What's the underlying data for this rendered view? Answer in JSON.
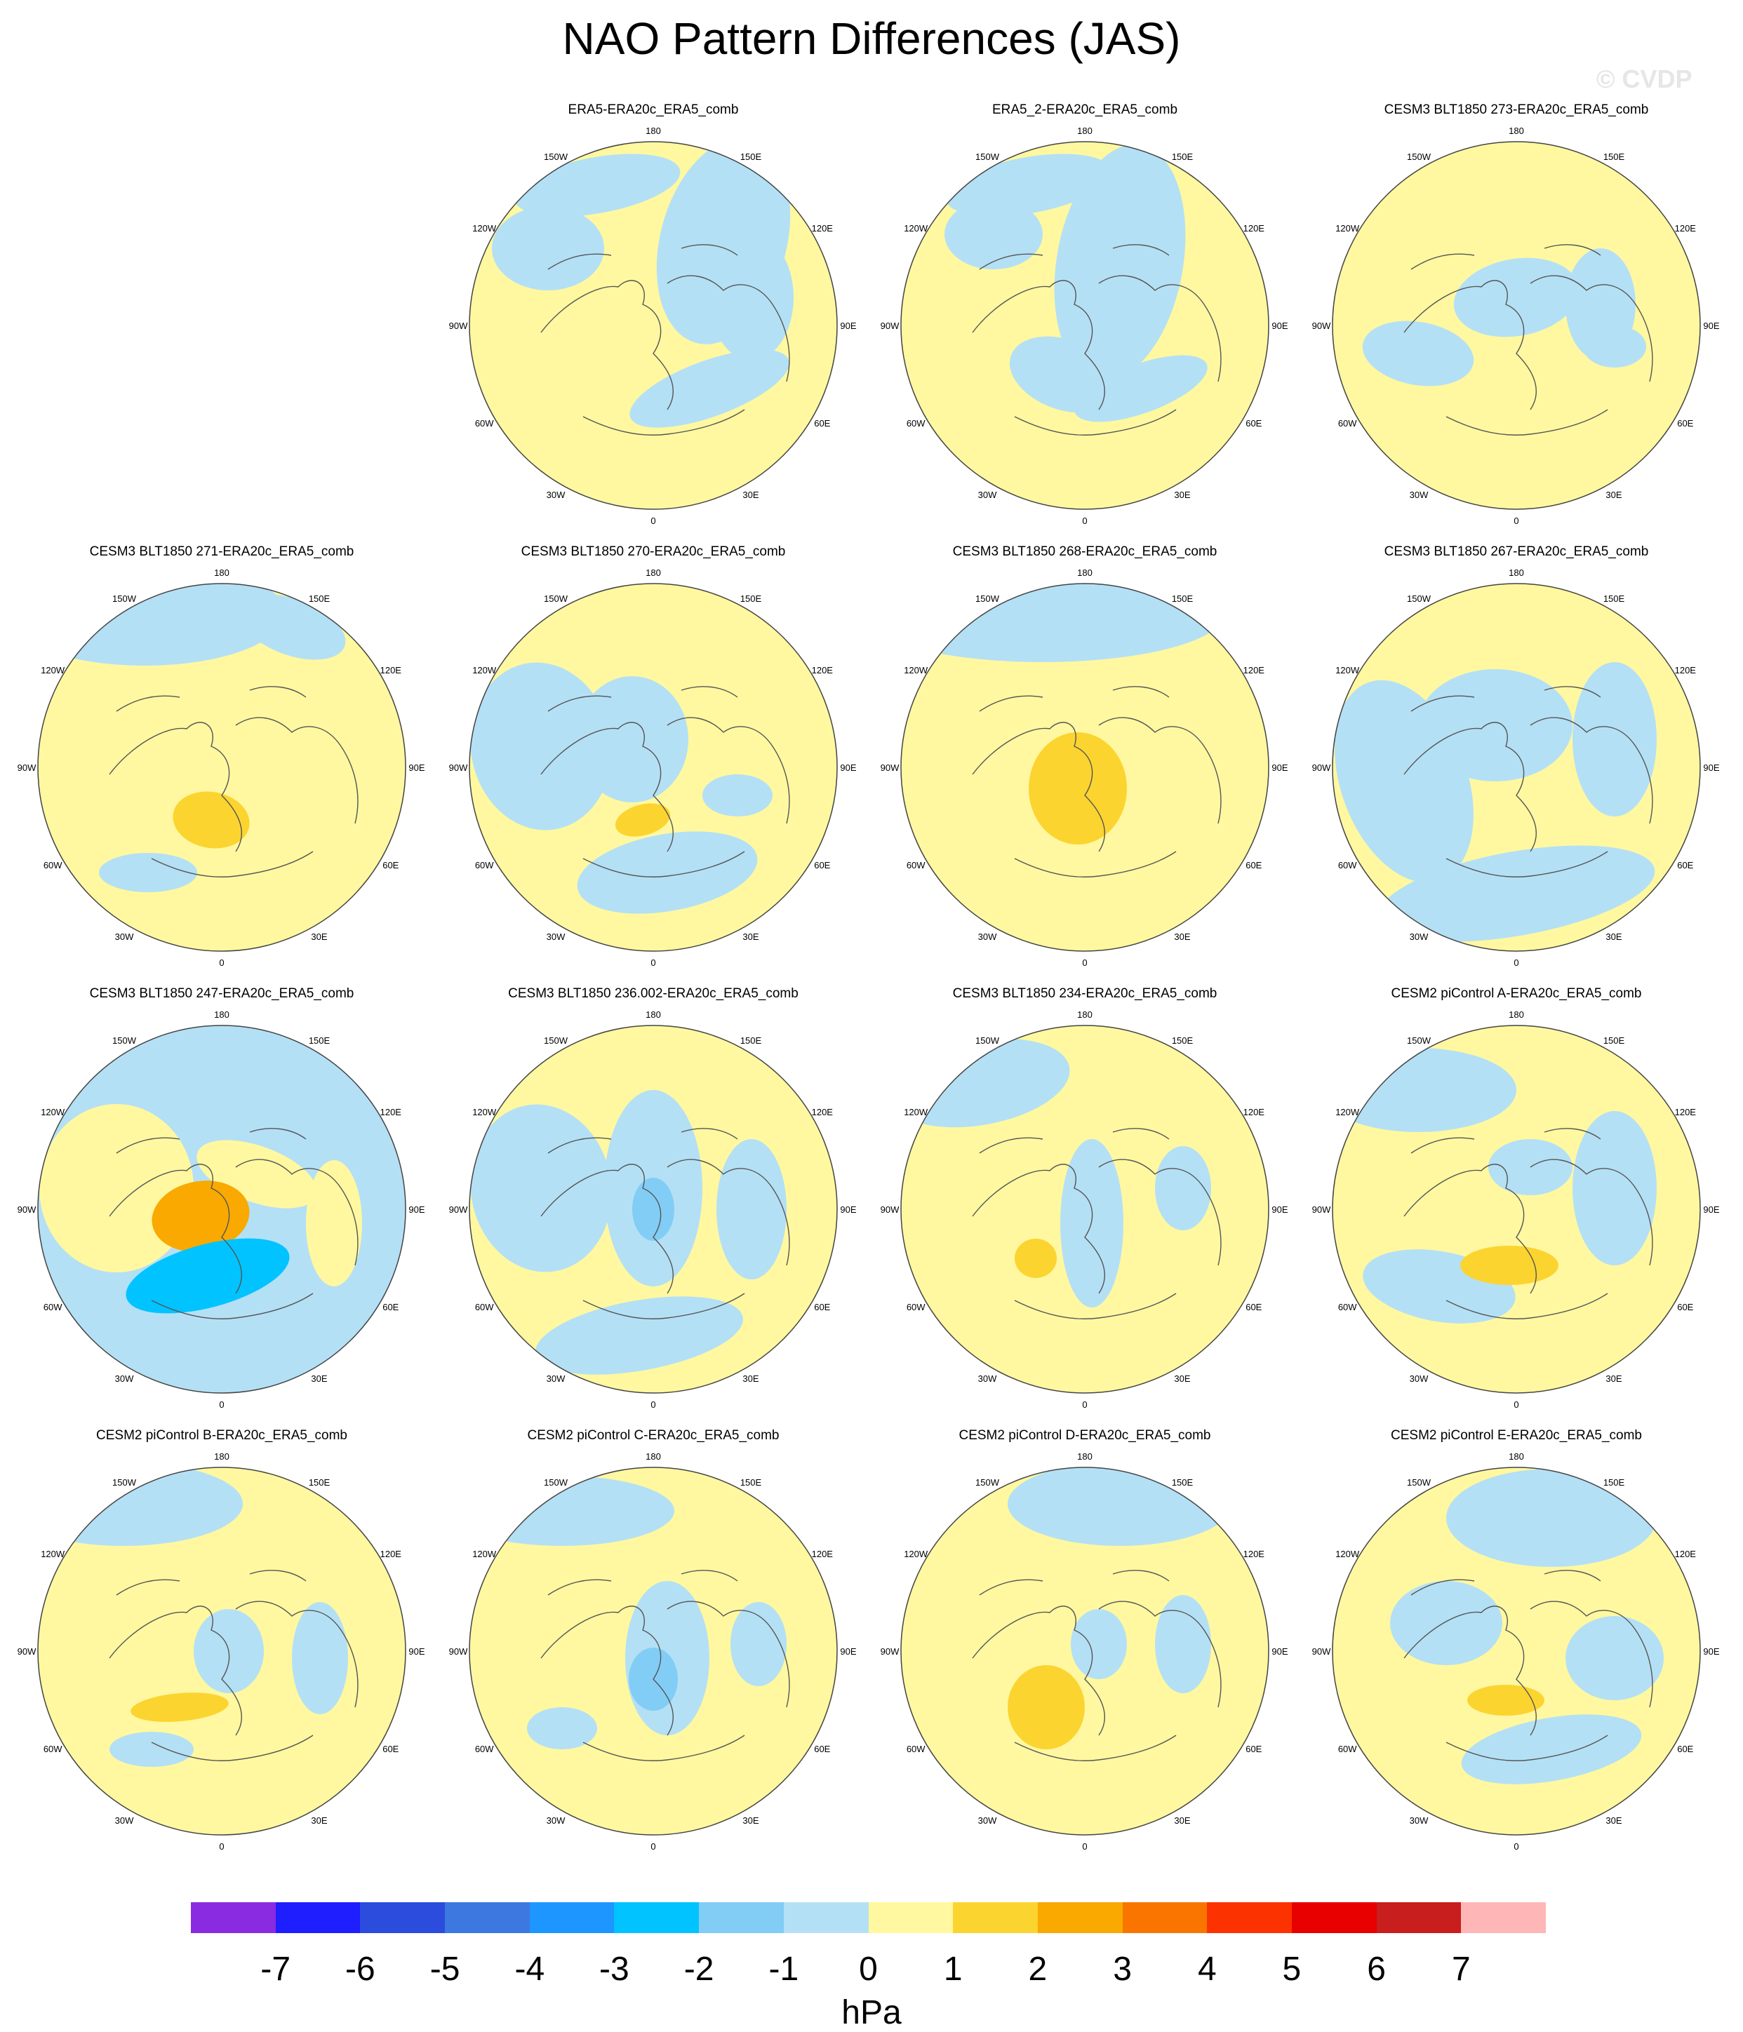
{
  "title": "NAO Pattern Differences (JAS)",
  "watermark": "© CVDP",
  "lon_labels": [
    "180",
    "150E",
    "120E",
    "90E",
    "60E",
    "30E",
    "0",
    "30W",
    "60W",
    "90W",
    "120W",
    "150W"
  ],
  "panels": [
    {
      "title": "ERA5-ERA20c_ERA5_comb",
      "blobs": []
    },
    {
      "title": "ERA5_2-ERA20c_ERA5_comb",
      "blobs": []
    },
    {
      "title": "CESM3 BLT1850 273-ERA20c_ERA5_comb",
      "blobs": []
    },
    {
      "title": "CESM3 BLT1850 271-ERA20c_ERA5_comb",
      "blobs": [
        {
          "value": 1.5
        }
      ]
    },
    {
      "title": "CESM3 BLT1850 270-ERA20c_ERA5_comb",
      "blobs": [
        {
          "value": 1.5
        }
      ]
    },
    {
      "title": "CESM3 BLT1850 268-ERA20c_ERA5_comb",
      "blobs": [
        {
          "value": 1.5
        }
      ]
    },
    {
      "title": "CESM3 BLT1850 267-ERA20c_ERA5_comb",
      "blobs": []
    },
    {
      "title": "CESM3 BLT1850 247-ERA20c_ERA5_comb",
      "blobs": [
        {
          "value": 2.5
        },
        {
          "value": -2.5
        }
      ]
    },
    {
      "title": "CESM3 BLT1850 236.002-ERA20c_ERA5_comb",
      "blobs": [
        {
          "value": -1.5
        }
      ]
    },
    {
      "title": "CESM3 BLT1850 234-ERA20c_ERA5_comb",
      "blobs": [
        {
          "value": 1.5
        }
      ]
    },
    {
      "title": "CESM2 piControl A-ERA20c_ERA5_comb",
      "blobs": [
        {
          "value": 1.5
        }
      ]
    },
    {
      "title": "CESM2 piControl B-ERA20c_ERA5_comb",
      "blobs": [
        {
          "value": 1.5
        }
      ]
    },
    {
      "title": "CESM2 piControl C-ERA20c_ERA5_comb",
      "blobs": [
        {
          "value": -1.5
        }
      ]
    },
    {
      "title": "CESM2 piControl D-ERA20c_ERA5_comb",
      "blobs": [
        {
          "value": 1.5
        }
      ]
    },
    {
      "title": "CESM2 piControl E-ERA20c_ERA5_comb",
      "blobs": [
        {
          "value": 1.5
        }
      ]
    }
  ],
  "colorbar": {
    "colors": [
      "#8a2be2",
      "#1e1eff",
      "#2b4cdc",
      "#3c78e0",
      "#1e96ff",
      "#00c3ff",
      "#82cdf5",
      "#b4e0f5",
      "#fff8a0",
      "#fcd430",
      "#f9a900",
      "#f97500",
      "#fc3300",
      "#e80000",
      "#c81e1e",
      "#ffb6b6"
    ],
    "labels": [
      "-7",
      "-6",
      "-5",
      "-4",
      "-3",
      "-2",
      "-1",
      "0",
      "1",
      "2",
      "3",
      "4",
      "5",
      "6",
      "7"
    ],
    "units": "hPa"
  }
}
